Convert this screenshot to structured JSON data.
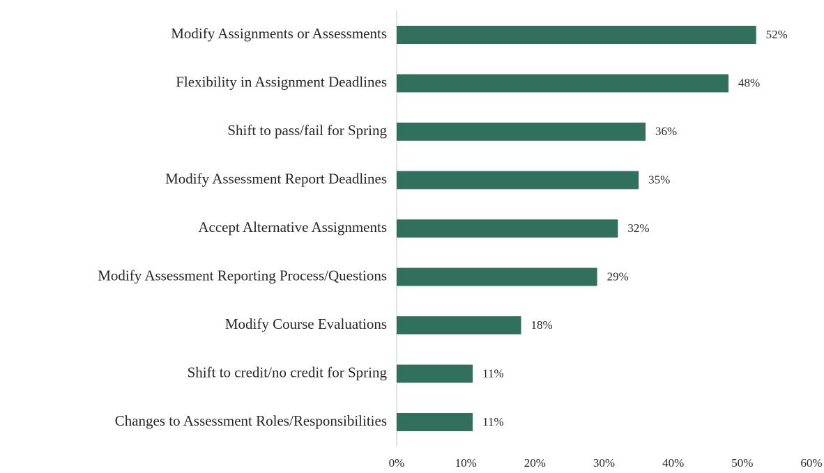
{
  "chart_data": {
    "type": "bar",
    "orientation": "horizontal",
    "categories": [
      "Modify Assignments or Assessments",
      "Flexibility in Assignment Deadlines",
      "Shift to pass/fail for Spring",
      "Modify Assessment Report Deadlines",
      "Accept Alternative Assignments",
      "Modify Assessment Reporting Process/Questions",
      "Modify Course Evaluations",
      "Shift to credit/no credit for Spring",
      "Changes to Assessment Roles/Responsibilities"
    ],
    "values": [
      52,
      48,
      36,
      35,
      32,
      29,
      18,
      11,
      11
    ],
    "value_labels": [
      "52%",
      "48%",
      "36%",
      "35%",
      "32%",
      "29%",
      "18%",
      "11%",
      "11%"
    ],
    "color": "#31705d",
    "xlim": [
      0,
      60
    ],
    "xticks": [
      {
        "value": 0,
        "label": "0%"
      },
      {
        "value": 10,
        "label": "10%"
      },
      {
        "value": 20,
        "label": "20%"
      },
      {
        "value": 30,
        "label": "30%"
      },
      {
        "value": 40,
        "label": "40%"
      },
      {
        "value": 50,
        "label": "50%"
      },
      {
        "value": 60,
        "label": "60%"
      }
    ],
    "grid": false
  }
}
